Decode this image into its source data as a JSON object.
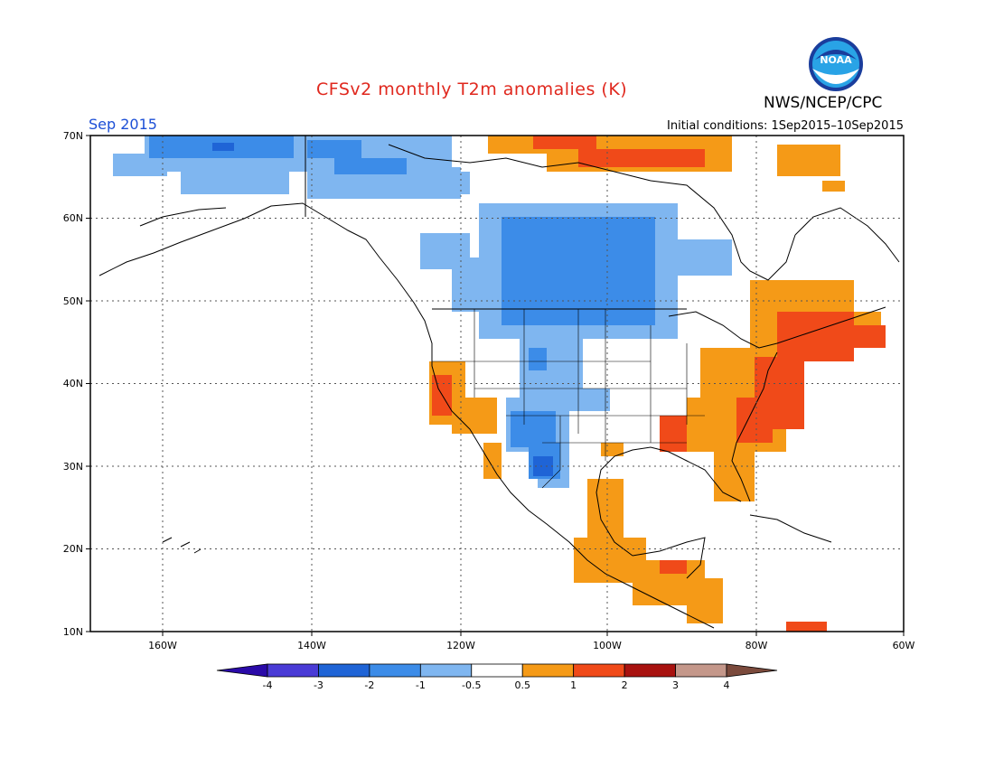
{
  "header": {
    "title": "CFSv2 monthly T2m anomalies (K)",
    "agency": "NWS/NCEP/CPC",
    "month": "Sep 2015",
    "initial_conditions": "Initial conditions: 1Sep2015–10Sep2015",
    "logo_text": "NOAA"
  },
  "map": {
    "lat_labels": [
      "70N",
      "60N",
      "50N",
      "40N",
      "30N",
      "20N",
      "10N"
    ],
    "lon_labels": [
      "160W",
      "140W",
      "120W",
      "100W",
      "80W",
      "60W"
    ]
  },
  "colorbar": {
    "labels": [
      "-4",
      "-3",
      "-2",
      "-1",
      "-0.5",
      "0.5",
      "1",
      "2",
      "3",
      "4"
    ],
    "colors": [
      "#2a0aa8",
      "#4a3bd6",
      "#1f64d6",
      "#3c8ce8",
      "#7fb6f0",
      "#ffffff",
      "#f59a17",
      "#f04a19",
      "#a8120f",
      "#c4978a",
      "#7b4a3c"
    ]
  },
  "legend_colors": {
    "neg_strong": "#1f64d6",
    "neg_mid": "#3c8ce8",
    "neg_weak": "#7fb6f0",
    "pos_weak": "#f59a17",
    "pos_mid": "#f04a19",
    "pos_strong": "#a8120f"
  }
}
